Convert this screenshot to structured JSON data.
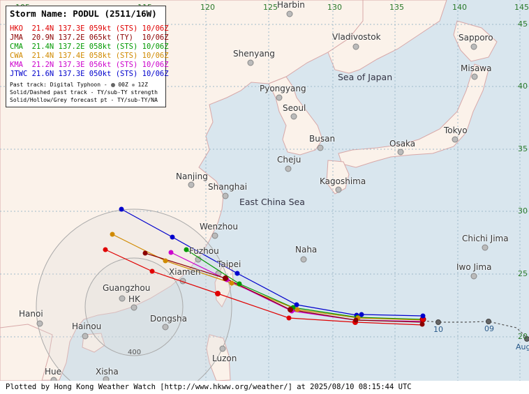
{
  "map": {
    "longitude_labels": [
      "105",
      "115",
      "120",
      "125",
      "130",
      "135",
      "140",
      "145"
    ],
    "latitude_labels": [
      "45",
      "40",
      "35",
      "30",
      "25",
      "20"
    ],
    "places": [
      {
        "name": "Harbin"
      },
      {
        "name": "Vladivostok"
      },
      {
        "name": "Sapporo"
      },
      {
        "name": "Shenyang"
      },
      {
        "name": "Misawa"
      },
      {
        "name": "Pyongyang"
      },
      {
        "name": "Seoul"
      },
      {
        "name": "Tokyo"
      },
      {
        "name": "Busan"
      },
      {
        "name": "Osaka"
      },
      {
        "name": "Cheju"
      },
      {
        "name": "Nanjing"
      },
      {
        "name": "Kagoshima"
      },
      {
        "name": "Shanghai"
      },
      {
        "name": "Wenzhou"
      },
      {
        "name": "Chichi Jima"
      },
      {
        "name": "Fuzhou"
      },
      {
        "name": "Naha"
      },
      {
        "name": "Taipei"
      },
      {
        "name": "Xiamen"
      },
      {
        "name": "Iwo Jima"
      },
      {
        "name": "Guangzhou"
      },
      {
        "name": "HK"
      },
      {
        "name": "Hanoi"
      },
      {
        "name": "Dongsha"
      },
      {
        "name": "Hainou"
      },
      {
        "name": "Luzon"
      },
      {
        "name": "Hue"
      },
      {
        "name": "Xisha"
      }
    ],
    "seas": [
      "Sea of Japan",
      "East China Sea"
    ],
    "ring_label": "400",
    "day_labels": [
      "10",
      "09",
      "Aug"
    ]
  },
  "legend": {
    "title": "Storm Name: PODUL (2511/16W)",
    "agencies": [
      {
        "agency": "HKO",
        "text": "HKO  21.4N 137.3E 059kt (STS) 10/06Z",
        "color": "#e00000"
      },
      {
        "agency": "JMA",
        "text": "JMA  20.9N 137.2E 065kt (TY)  10/06Z",
        "color": "#8b0000"
      },
      {
        "agency": "CMA",
        "text": "CMA  21.4N 137.2E 058kt (STS) 10/06Z",
        "color": "#009900"
      },
      {
        "agency": "CWA",
        "text": "CWA  21.4N 137.4E 058kt (STS) 10/06Z",
        "color": "#d08a00"
      },
      {
        "agency": "KMA",
        "text": "KMA  21.2N 137.3E 056kt (STS) 10/06Z",
        "color": "#cc00cc"
      },
      {
        "agency": "JTWC",
        "text": "JTWC 21.6N 137.3E 050kt (STS) 10/06Z",
        "color": "#0000cc"
      }
    ],
    "note1": "Past track: Digital Typhoon - ",
    "note1_00z": "00Z",
    "note1_12z": "12Z",
    "note2": "Solid/Dashed past track - TY/sub-TY strength",
    "note3": "Solid/Hollow/Grey forecast pt - TY/sub-TY/NA"
  },
  "footer": {
    "text": "Plotted by Hong Kong Weather Watch [http://www.hkww.org/weather/] at 2025/08/10 08:15:44 UTC"
  }
}
